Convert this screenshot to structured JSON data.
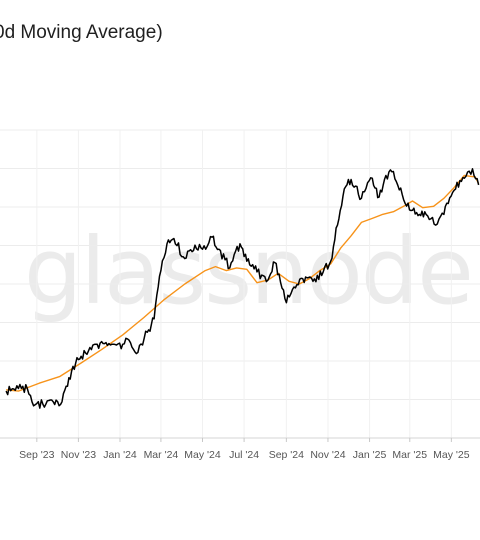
{
  "chart_data": {
    "type": "line",
    "title": "0d Moving Average)",
    "watermark": "glassnode",
    "x_tick_labels": [
      "Sep '23",
      "Nov '23",
      "Jan '24",
      "Mar '24",
      "May '24",
      "Jul '24",
      "Sep '24",
      "Nov '24",
      "Jan '25",
      "Mar '25",
      "May '25"
    ],
    "x_tick_dates": [
      "2023-09-01",
      "2023-11-01",
      "2024-01-01",
      "2024-03-01",
      "2024-05-01",
      "2024-07-01",
      "2024-09-01",
      "2024-11-01",
      "2025-01-01",
      "2025-03-01",
      "2025-05-01"
    ],
    "grid": true,
    "y_grid_count": 9,
    "series": [
      {
        "color": "#000000",
        "x": [
          "2023-07-18",
          "2023-08-05",
          "2023-08-18",
          "2023-08-25",
          "2023-09-10",
          "2023-09-25",
          "2023-10-08",
          "2023-10-18",
          "2023-10-28",
          "2023-11-05",
          "2023-11-20",
          "2023-12-05",
          "2023-12-20",
          "2024-01-05",
          "2024-01-12",
          "2024-01-25",
          "2024-02-10",
          "2024-02-20",
          "2024-03-01",
          "2024-03-10",
          "2024-03-20",
          "2024-04-05",
          "2024-04-20",
          "2024-05-01",
          "2024-05-15",
          "2024-05-25",
          "2024-06-10",
          "2024-06-25",
          "2024-07-05",
          "2024-07-20",
          "2024-08-05",
          "2024-08-15",
          "2024-09-01",
          "2024-09-10",
          "2024-09-25",
          "2024-10-10",
          "2024-10-25",
          "2024-11-05",
          "2024-11-15",
          "2024-11-25",
          "2024-12-05",
          "2024-12-20",
          "2025-01-05",
          "2025-01-15",
          "2025-01-25",
          "2025-02-05",
          "2025-02-20",
          "2025-03-05",
          "2025-03-15",
          "2025-03-25",
          "2025-04-08",
          "2025-04-20",
          "2025-05-05",
          "2025-05-20",
          "2025-06-01",
          "2025-06-10"
        ],
        "y": [
          35,
          37,
          37,
          27,
          25,
          27,
          27,
          45,
          56,
          61,
          66,
          72,
          70,
          70,
          74,
          63,
          79,
          89,
          125,
          145,
          149,
          134,
          144,
          141,
          150,
          141,
          127,
          145,
          132,
          124,
          118,
          131,
          101,
          111,
          119,
          117,
          124,
          132,
          159,
          186,
          193,
          179,
          194,
          180,
          196,
          199,
          178,
          170,
          167,
          167,
          159,
          167,
          185,
          194,
          201,
          189
        ]
      },
      {
        "color": "#f7931a",
        "x": [
          "2023-07-18",
          "2023-08-05",
          "2023-09-05",
          "2023-10-05",
          "2023-11-05",
          "2023-12-05",
          "2024-01-05",
          "2024-02-05",
          "2024-03-05",
          "2024-04-05",
          "2024-05-05",
          "2024-05-20",
          "2024-06-05",
          "2024-06-20",
          "2024-07-05",
          "2024-07-20",
          "2024-08-05",
          "2024-08-20",
          "2024-09-05",
          "2024-09-20",
          "2024-10-05",
          "2024-10-20",
          "2024-11-05",
          "2024-11-20",
          "2024-12-05",
          "2024-12-20",
          "2025-01-05",
          "2025-01-20",
          "2025-02-05",
          "2025-02-20",
          "2025-03-05",
          "2025-03-20",
          "2025-04-05",
          "2025-04-20",
          "2025-05-05",
          "2025-05-20",
          "2025-06-05",
          "2025-06-10"
        ],
        "y": [
          36,
          35,
          41,
          46,
          56,
          66,
          77,
          90,
          103,
          115,
          125,
          128,
          125,
          127,
          126,
          116,
          118,
          123,
          117,
          115,
          119,
          125,
          130,
          142,
          151,
          161,
          164,
          167,
          169,
          173,
          177,
          172,
          173,
          179,
          187,
          196,
          195,
          190
        ]
      }
    ]
  }
}
